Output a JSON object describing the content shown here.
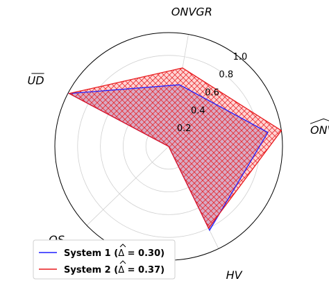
{
  "chart_data": {
    "type": "radar",
    "axes": [
      "ONVGR",
      "ONVG",
      "HV",
      "OS",
      "UD"
    ],
    "axis_overlines": [
      false,
      false,
      false,
      false,
      true
    ],
    "axis_hats": [
      false,
      true,
      false,
      false,
      false
    ],
    "radial_ticks": [
      "0.2",
      "0.4",
      "0.6",
      "0.8",
      "1.0"
    ],
    "radial_tick_values": [
      0.2,
      0.4,
      0.6,
      0.8,
      1.0
    ],
    "rlim": [
      0,
      1.0
    ],
    "grid": true,
    "legend_position": "lower-left",
    "series": [
      {
        "name": "System 1 (Δ̂ = 0.30)",
        "label_main": "System 1 (",
        "label_hat": "Δ",
        "label_rest": " = 0.30)",
        "values": [
          0.55,
          0.88,
          0.82,
          0.0,
          0.99
        ],
        "color": "#1f1fff",
        "fill": "#8a7fcf",
        "hatch": false
      },
      {
        "name": "System 2 (Δ̂ = 0.37)",
        "label_main": "System 2 (",
        "label_hat": "Δ",
        "label_rest": " = 0.37)",
        "values": [
          0.7,
          1.0,
          0.8,
          0.0,
          0.99
        ],
        "color": "#e8191c",
        "fill": "#ffb3b3",
        "hatch": true
      }
    ]
  }
}
